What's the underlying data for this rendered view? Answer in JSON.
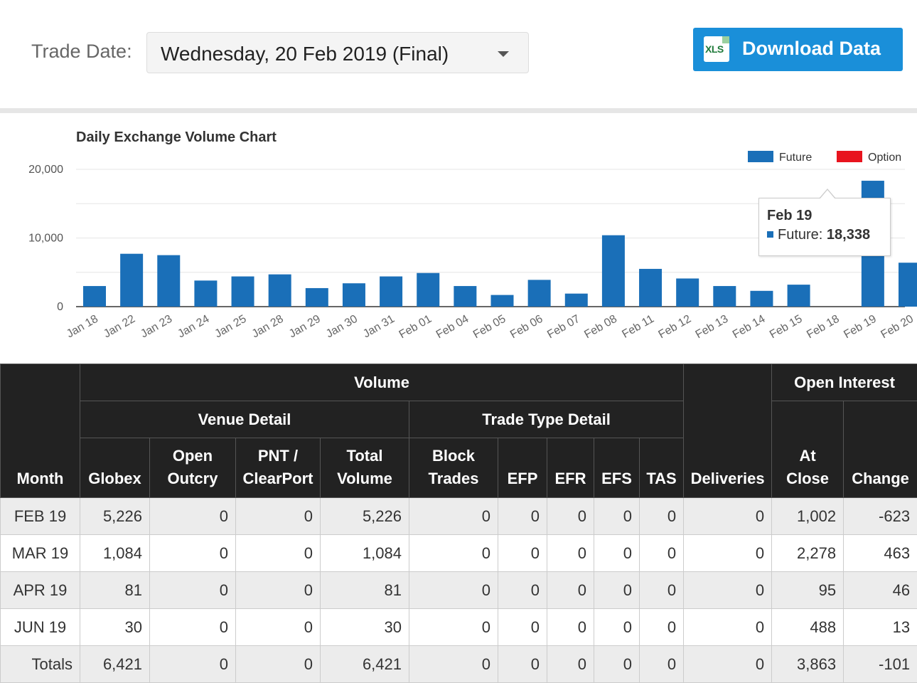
{
  "header": {
    "trade_date_label": "Trade Date:",
    "trade_date_value": "Wednesday, 20 Feb 2019 (Final)",
    "download_icon_text": "XLS",
    "download_label": "Download Data"
  },
  "chart_data": {
    "type": "bar",
    "title": "Daily Exchange Volume Chart",
    "ylim": [
      0,
      20000
    ],
    "yticks": [
      "0",
      "10,000",
      "20,000"
    ],
    "categories": [
      "Jan 18",
      "Jan 22",
      "Jan 23",
      "Jan 24",
      "Jan 25",
      "Jan 28",
      "Jan 29",
      "Jan 30",
      "Jan 31",
      "Feb 01",
      "Feb 04",
      "Feb 05",
      "Feb 06",
      "Feb 07",
      "Feb 08",
      "Feb 11",
      "Feb 12",
      "Feb 13",
      "Feb 14",
      "Feb 15",
      "Feb 18",
      "Feb 19",
      "Feb 20"
    ],
    "series": [
      {
        "name": "Future",
        "color": "#1a6fb8",
        "values": [
          3000,
          7700,
          7500,
          3800,
          4400,
          4700,
          2700,
          3400,
          4400,
          4900,
          3000,
          1700,
          3900,
          1900,
          10400,
          5500,
          4100,
          3000,
          2300,
          3200,
          0,
          18338,
          6400
        ]
      },
      {
        "name": "Option",
        "color": "#e8141e",
        "values": [
          0,
          0,
          0,
          0,
          0,
          0,
          0,
          0,
          0,
          0,
          0,
          0,
          0,
          0,
          0,
          0,
          0,
          0,
          0,
          0,
          0,
          0,
          0
        ]
      }
    ],
    "legend": "top-right",
    "grid": true,
    "tooltip": {
      "title": "Feb 19",
      "series": "Future",
      "label": "Future: ",
      "value": "18,338"
    }
  },
  "table": {
    "headers": {
      "month": "Month",
      "volume": "Volume",
      "venue_detail": "Venue Detail",
      "trade_type_detail": "Trade Type Detail",
      "deliveries": "Deliveries",
      "open_interest": "Open Interest",
      "globex": "Globex",
      "open_outcry_1": "Open",
      "open_outcry_2": "Outcry",
      "pnt_1": "PNT /",
      "pnt_2": "ClearPort",
      "total_1": "Total",
      "total_2": "Volume",
      "block_1": "Block",
      "block_2": "Trades",
      "efp": "EFP",
      "efr": "EFR",
      "efs": "EFS",
      "tas": "TAS",
      "at_close_1": "At",
      "at_close_2": "Close",
      "change": "Change"
    },
    "rows": [
      {
        "month": "FEB 19",
        "globex": "5,226",
        "open_outcry": "0",
        "pnt": "0",
        "total": "5,226",
        "block": "0",
        "efp": "0",
        "efr": "0",
        "efs": "0",
        "tas": "0",
        "deliveries": "0",
        "at_close": "1,002",
        "change": "-623"
      },
      {
        "month": "MAR 19",
        "globex": "1,084",
        "open_outcry": "0",
        "pnt": "0",
        "total": "1,084",
        "block": "0",
        "efp": "0",
        "efr": "0",
        "efs": "0",
        "tas": "0",
        "deliveries": "0",
        "at_close": "2,278",
        "change": "463"
      },
      {
        "month": "APR 19",
        "globex": "81",
        "open_outcry": "0",
        "pnt": "0",
        "total": "81",
        "block": "0",
        "efp": "0",
        "efr": "0",
        "efs": "0",
        "tas": "0",
        "deliveries": "0",
        "at_close": "95",
        "change": "46"
      },
      {
        "month": "JUN 19",
        "globex": "30",
        "open_outcry": "0",
        "pnt": "0",
        "total": "30",
        "block": "0",
        "efp": "0",
        "efr": "0",
        "efs": "0",
        "tas": "0",
        "deliveries": "0",
        "at_close": "488",
        "change": "13"
      },
      {
        "month": "Totals",
        "globex": "6,421",
        "open_outcry": "0",
        "pnt": "0",
        "total": "6,421",
        "block": "0",
        "efp": "0",
        "efr": "0",
        "efs": "0",
        "tas": "0",
        "deliveries": "0",
        "at_close": "3,863",
        "change": "-101"
      }
    ]
  }
}
